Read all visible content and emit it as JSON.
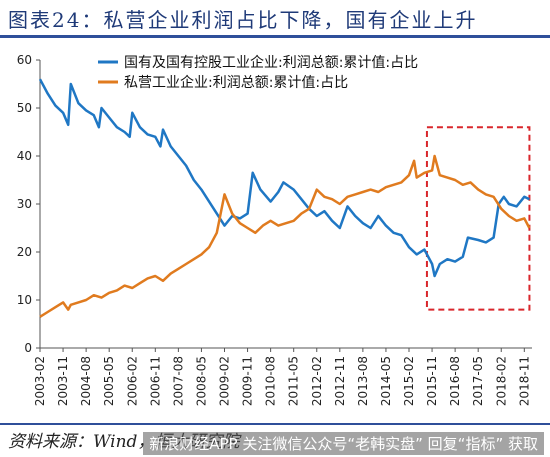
{
  "title": "图表24：私营企业利润占比下降，国有企业上升",
  "source": "资料来源：Wind，恒大研究院",
  "watermark": "新浪财经APP 关注微信公众号“老韩实盘” 回复“指标” 获取",
  "colors": {
    "soe": "#1f77c4",
    "private": "#e07b1f",
    "highlight": "#d9262b"
  },
  "chart_data": {
    "type": "line",
    "title": "",
    "xlabel": "",
    "ylabel": "",
    "ylim": [
      0,
      60
    ],
    "yticks": [
      0,
      10,
      20,
      30,
      40,
      50,
      60
    ],
    "xticks": [
      "2003-02",
      "2003-11",
      "2004-08",
      "2005-05",
      "2006-02",
      "2006-11",
      "2007-08",
      "2008-05",
      "2009-02",
      "2009-11",
      "2010-08",
      "2011-05",
      "2012-02",
      "2012-11",
      "2013-08",
      "2014-05",
      "2015-02",
      "2015-11",
      "2016-08",
      "2017-05",
      "2018-02",
      "2018-11"
    ],
    "legend_position": "top",
    "grid": false,
    "highlight_box": {
      "x_start": "2015-09",
      "x_end": "2019-01",
      "y_start": 8,
      "y_end": 46
    },
    "series": [
      {
        "name": "国有及国有控股工业企业:利润总额:累计值:占比",
        "color": "#1f77c4",
        "points": [
          [
            "2003-02",
            56
          ],
          [
            "2003-05",
            53
          ],
          [
            "2003-08",
            50.5
          ],
          [
            "2003-11",
            49
          ],
          [
            "2004-01",
            46.5
          ],
          [
            "2004-02",
            55
          ],
          [
            "2004-05",
            51
          ],
          [
            "2004-08",
            49.5
          ],
          [
            "2004-11",
            48.5
          ],
          [
            "2005-01",
            46
          ],
          [
            "2005-02",
            50
          ],
          [
            "2005-05",
            48
          ],
          [
            "2005-08",
            46
          ],
          [
            "2005-11",
            45
          ],
          [
            "2006-01",
            44
          ],
          [
            "2006-02",
            49
          ],
          [
            "2006-05",
            46
          ],
          [
            "2006-08",
            44.5
          ],
          [
            "2006-11",
            44
          ],
          [
            "2007-01",
            42
          ],
          [
            "2007-02",
            45.5
          ],
          [
            "2007-05",
            42
          ],
          [
            "2007-08",
            40
          ],
          [
            "2007-11",
            38
          ],
          [
            "2008-02",
            35
          ],
          [
            "2008-05",
            33
          ],
          [
            "2008-08",
            30.5
          ],
          [
            "2008-11",
            28
          ],
          [
            "2009-02",
            25.5
          ],
          [
            "2009-05",
            27.5
          ],
          [
            "2009-08",
            27
          ],
          [
            "2009-11",
            28
          ],
          [
            "2010-01",
            36.5
          ],
          [
            "2010-04",
            33
          ],
          [
            "2010-08",
            30.5
          ],
          [
            "2010-11",
            32.5
          ],
          [
            "2011-01",
            34.5
          ],
          [
            "2011-05",
            33
          ],
          [
            "2011-08",
            31
          ],
          [
            "2011-11",
            29
          ],
          [
            "2012-02",
            27.5
          ],
          [
            "2012-05",
            28.5
          ],
          [
            "2012-08",
            26.5
          ],
          [
            "2012-11",
            25
          ],
          [
            "2013-02",
            29.5
          ],
          [
            "2013-05",
            27.5
          ],
          [
            "2013-08",
            26
          ],
          [
            "2013-11",
            25
          ],
          [
            "2014-02",
            27.5
          ],
          [
            "2014-05",
            25.5
          ],
          [
            "2014-08",
            24
          ],
          [
            "2014-11",
            23.5
          ],
          [
            "2015-02",
            21
          ],
          [
            "2015-05",
            19.5
          ],
          [
            "2015-08",
            20.5
          ],
          [
            "2015-11",
            17.5
          ],
          [
            "2015-12",
            15
          ],
          [
            "2016-02",
            17.5
          ],
          [
            "2016-05",
            18.5
          ],
          [
            "2016-08",
            18
          ],
          [
            "2016-11",
            19
          ],
          [
            "2017-01",
            23
          ],
          [
            "2017-05",
            22.5
          ],
          [
            "2017-08",
            22
          ],
          [
            "2017-11",
            23
          ],
          [
            "2018-01",
            30
          ],
          [
            "2018-03",
            31.5
          ],
          [
            "2018-05",
            30
          ],
          [
            "2018-08",
            29.5
          ],
          [
            "2018-11",
            31.5
          ],
          [
            "2019-01",
            31
          ]
        ]
      },
      {
        "name": "私营工业企业:利润总额:累计值:占比",
        "color": "#e07b1f",
        "points": [
          [
            "2003-02",
            6.5
          ],
          [
            "2003-05",
            7.5
          ],
          [
            "2003-08",
            8.5
          ],
          [
            "2003-11",
            9.5
          ],
          [
            "2004-01",
            8
          ],
          [
            "2004-02",
            9
          ],
          [
            "2004-05",
            9.5
          ],
          [
            "2004-08",
            10
          ],
          [
            "2004-11",
            11
          ],
          [
            "2005-02",
            10.5
          ],
          [
            "2005-05",
            11.5
          ],
          [
            "2005-08",
            12
          ],
          [
            "2005-11",
            13
          ],
          [
            "2006-02",
            12.5
          ],
          [
            "2006-05",
            13.5
          ],
          [
            "2006-08",
            14.5
          ],
          [
            "2006-11",
            15
          ],
          [
            "2007-02",
            14
          ],
          [
            "2007-05",
            15.5
          ],
          [
            "2007-08",
            16.5
          ],
          [
            "2007-11",
            17.5
          ],
          [
            "2008-02",
            18.5
          ],
          [
            "2008-05",
            19.5
          ],
          [
            "2008-08",
            21
          ],
          [
            "2008-11",
            24
          ],
          [
            "2009-02",
            32
          ],
          [
            "2009-05",
            28
          ],
          [
            "2009-08",
            26
          ],
          [
            "2009-11",
            25
          ],
          [
            "2010-02",
            24
          ],
          [
            "2010-05",
            25.5
          ],
          [
            "2010-08",
            26.5
          ],
          [
            "2010-11",
            25.5
          ],
          [
            "2011-02",
            26
          ],
          [
            "2011-05",
            26.5
          ],
          [
            "2011-08",
            28
          ],
          [
            "2011-11",
            29
          ],
          [
            "2012-02",
            33
          ],
          [
            "2012-05",
            31.5
          ],
          [
            "2012-08",
            31
          ],
          [
            "2012-11",
            30
          ],
          [
            "2013-02",
            31.5
          ],
          [
            "2013-05",
            32
          ],
          [
            "2013-08",
            32.5
          ],
          [
            "2013-11",
            33
          ],
          [
            "2014-02",
            32.5
          ],
          [
            "2014-05",
            33.5
          ],
          [
            "2014-08",
            34
          ],
          [
            "2014-11",
            34.5
          ],
          [
            "2015-02",
            36
          ],
          [
            "2015-04",
            39
          ],
          [
            "2015-05",
            35.5
          ],
          [
            "2015-08",
            36.5
          ],
          [
            "2015-11",
            37
          ],
          [
            "2015-12",
            40
          ],
          [
            "2016-02",
            36
          ],
          [
            "2016-05",
            35.5
          ],
          [
            "2016-08",
            35
          ],
          [
            "2016-11",
            34
          ],
          [
            "2017-02",
            34.5
          ],
          [
            "2017-05",
            33
          ],
          [
            "2017-08",
            32
          ],
          [
            "2017-11",
            31.5
          ],
          [
            "2018-02",
            29
          ],
          [
            "2018-05",
            27.5
          ],
          [
            "2018-08",
            26.5
          ],
          [
            "2018-11",
            27
          ],
          [
            "2019-01",
            25
          ]
        ]
      }
    ]
  }
}
